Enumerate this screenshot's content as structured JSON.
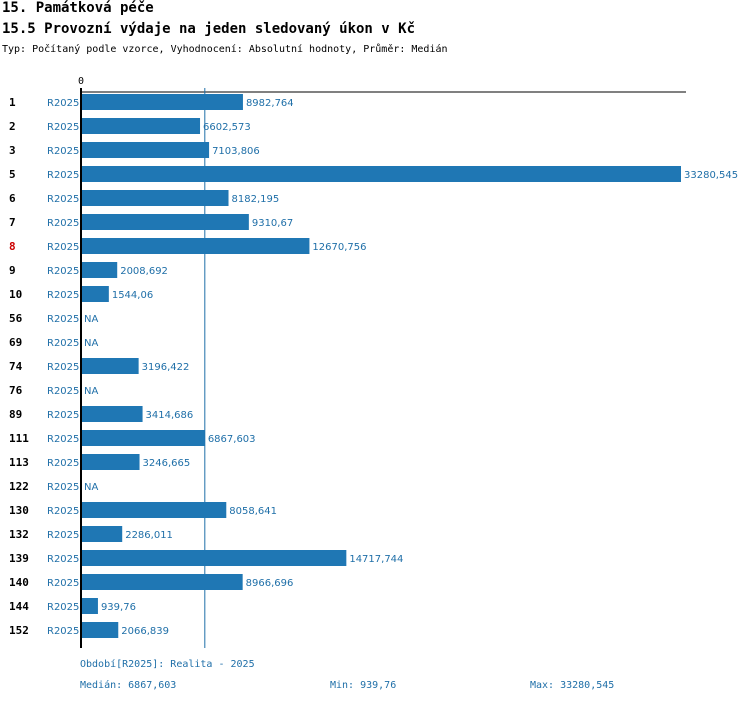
{
  "header": {
    "section": "15. Památková péče",
    "title": "15.5 Provozní výdaje na jeden sledovaný úkon v Kč",
    "subtitle": "Typ: Počítaný podle vzorce, Vyhodnocení: Absolutní hodnoty, Průměr: Medián"
  },
  "chart_data": {
    "type": "bar",
    "orientation": "horizontal",
    "axis_zero_label": "0",
    "xlim": [
      0,
      33280.545
    ],
    "median": 6867.603,
    "highlight_color": "#cc0000",
    "bar_color": "#1f77b4",
    "rows": [
      {
        "id": "1",
        "period": "R2025",
        "value": 8982.764,
        "label": "8982,764",
        "highlight": false
      },
      {
        "id": "2",
        "period": "R2025",
        "value": 6602.573,
        "label": "6602,573",
        "highlight": false
      },
      {
        "id": "3",
        "period": "R2025",
        "value": 7103.806,
        "label": "7103,806",
        "highlight": false
      },
      {
        "id": "5",
        "period": "R2025",
        "value": 33280.545,
        "label": "33280,545",
        "highlight": false
      },
      {
        "id": "6",
        "period": "R2025",
        "value": 8182.195,
        "label": "8182,195",
        "highlight": false
      },
      {
        "id": "7",
        "period": "R2025",
        "value": 9310.67,
        "label": "9310,67",
        "highlight": false
      },
      {
        "id": "8",
        "period": "R2025",
        "value": 12670.756,
        "label": "12670,756",
        "highlight": true
      },
      {
        "id": "9",
        "period": "R2025",
        "value": 2008.692,
        "label": "2008,692",
        "highlight": false
      },
      {
        "id": "10",
        "period": "R2025",
        "value": 1544.06,
        "label": "1544,06",
        "highlight": false
      },
      {
        "id": "56",
        "period": "R2025",
        "value": null,
        "label": "NA",
        "highlight": false
      },
      {
        "id": "69",
        "period": "R2025",
        "value": null,
        "label": "NA",
        "highlight": false
      },
      {
        "id": "74",
        "period": "R2025",
        "value": 3196.422,
        "label": "3196,422",
        "highlight": false
      },
      {
        "id": "76",
        "period": "R2025",
        "value": null,
        "label": "NA",
        "highlight": false
      },
      {
        "id": "89",
        "period": "R2025",
        "value": 3414.686,
        "label": "3414,686",
        "highlight": false
      },
      {
        "id": "111",
        "period": "R2025",
        "value": 6867.603,
        "label": "6867,603",
        "highlight": false
      },
      {
        "id": "113",
        "period": "R2025",
        "value": 3246.665,
        "label": "3246,665",
        "highlight": false
      },
      {
        "id": "122",
        "period": "R2025",
        "value": null,
        "label": "NA",
        "highlight": false
      },
      {
        "id": "130",
        "period": "R2025",
        "value": 8058.641,
        "label": "8058,641",
        "highlight": false
      },
      {
        "id": "132",
        "period": "R2025",
        "value": 2286.011,
        "label": "2286,011",
        "highlight": false
      },
      {
        "id": "139",
        "period": "R2025",
        "value": 14717.744,
        "label": "14717,744",
        "highlight": false
      },
      {
        "id": "140",
        "period": "R2025",
        "value": 8966.696,
        "label": "8966,696",
        "highlight": false
      },
      {
        "id": "144",
        "period": "R2025",
        "value": 939.76,
        "label": "939,76",
        "highlight": false
      },
      {
        "id": "152",
        "period": "R2025",
        "value": 2066.839,
        "label": "2066,839",
        "highlight": false
      }
    ]
  },
  "footer": {
    "period_legend": "Období[R2025]: Realita - 2025",
    "median_label": "Medián: 6867,603",
    "min_label": "Min: 939,76",
    "max_label": "Max: 33280,545"
  }
}
